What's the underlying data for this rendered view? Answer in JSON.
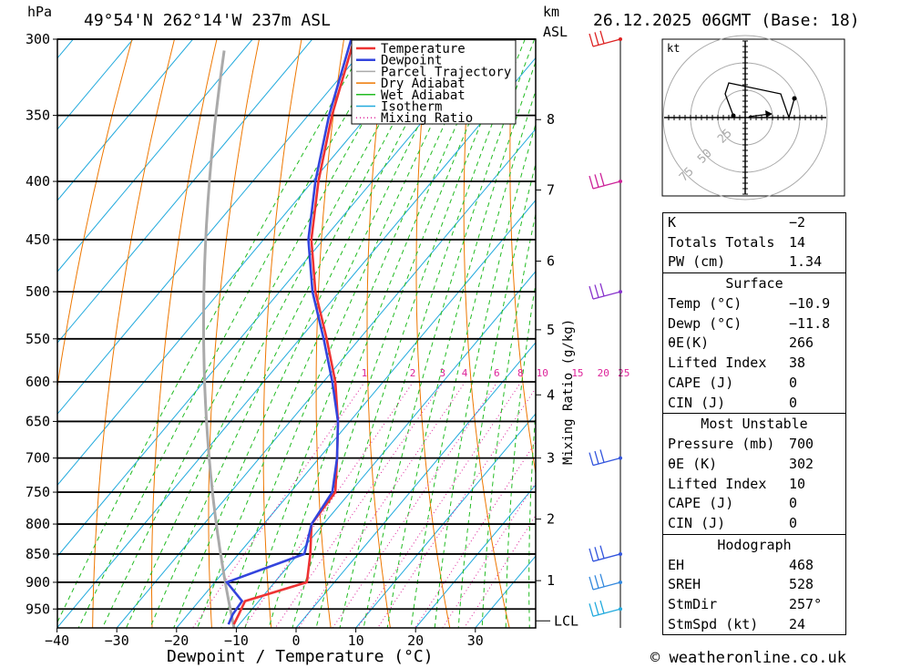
{
  "header": {
    "location": "49°54'N  262°14'W  237m  ASL",
    "datetime": "26.12.2025  06GMT  (Base: 18)",
    "hpa_unit": "hPa",
    "km_unit": "km",
    "asl_unit": "ASL"
  },
  "legend": {
    "items": [
      {
        "label": "Temperature",
        "color": "#ee3333"
      },
      {
        "label": "Dewpoint",
        "color": "#3344dd"
      },
      {
        "label": "Parcel Trajectory",
        "color": "#aaaaaa"
      },
      {
        "label": "Dry Adiabat",
        "color": "#ee7700"
      },
      {
        "label": "Wet Adiabat",
        "color": "#22bb22"
      },
      {
        "label": "Isotherm",
        "color": "#22aadd"
      },
      {
        "label": "Mixing Ratio",
        "color": "#dd2299"
      }
    ]
  },
  "chart_data": {
    "type": "line",
    "title": "Skew-T log-P diagram",
    "xlabel": "Dewpoint / Temperature (°C)",
    "ylabel": "hPa",
    "x_ticks": [
      -40,
      -30,
      -20,
      -10,
      0,
      10,
      20,
      30
    ],
    "x_tick_labels": [
      "−40",
      "−30",
      "−20",
      "−10",
      "0",
      "10",
      "20",
      "30"
    ],
    "pressure_levels": [
      300,
      350,
      400,
      450,
      500,
      550,
      600,
      650,
      700,
      750,
      800,
      850,
      900,
      950
    ],
    "km_ticks": [
      {
        "km": "8",
        "p": 353
      },
      {
        "km": "7",
        "p": 407
      },
      {
        "km": "6",
        "p": 470
      },
      {
        "km": "5",
        "p": 540
      },
      {
        "km": "4",
        "p": 616
      },
      {
        "km": "3",
        "p": 700
      },
      {
        "km": "2",
        "p": 792
      },
      {
        "km": "1",
        "p": 897
      }
    ],
    "lcl": {
      "label": "LCL",
      "p": 973
    },
    "mixing_ratio_label": "Mixing Ratio (g/kg)",
    "mixing_ratio_values": [
      "1",
      "2",
      "3",
      "4",
      "6",
      "8",
      "10",
      "15",
      "20",
      "25"
    ],
    "series": [
      {
        "name": "Temperature",
        "points": [
          {
            "p": 980,
            "t": -10.9
          },
          {
            "p": 960,
            "t": -11.5
          },
          {
            "p": 935,
            "t": -12.3
          },
          {
            "p": 900,
            "t": -4.6
          },
          {
            "p": 850,
            "t": -8.0
          },
          {
            "p": 800,
            "t": -12.0
          },
          {
            "p": 750,
            "t": -12.5
          },
          {
            "p": 700,
            "t": -17.0
          },
          {
            "p": 650,
            "t": -22.0
          },
          {
            "p": 600,
            "t": -28.0
          },
          {
            "p": 550,
            "t": -35.5
          },
          {
            "p": 500,
            "t": -44.0
          },
          {
            "p": 450,
            "t": -52.0
          },
          {
            "p": 400,
            "t": -59.0
          },
          {
            "p": 350,
            "t": -66.0
          },
          {
            "p": 300,
            "t": -73.0
          }
        ]
      },
      {
        "name": "Dewpoint",
        "points": [
          {
            "p": 980,
            "t": -11.8
          },
          {
            "p": 960,
            "t": -12.5
          },
          {
            "p": 935,
            "t": -12.8
          },
          {
            "p": 900,
            "t": -18.0
          },
          {
            "p": 850,
            "t": -9.0
          },
          {
            "p": 800,
            "t": -12.0
          },
          {
            "p": 750,
            "t": -13.0
          },
          {
            "p": 700,
            "t": -17.0
          },
          {
            "p": 650,
            "t": -22.0
          },
          {
            "p": 600,
            "t": -28.5
          },
          {
            "p": 550,
            "t": -36.0
          },
          {
            "p": 500,
            "t": -44.5
          },
          {
            "p": 450,
            "t": -52.5
          },
          {
            "p": 400,
            "t": -59.5
          },
          {
            "p": 350,
            "t": -66.5
          },
          {
            "p": 300,
            "t": -73.5
          }
        ]
      }
    ],
    "wind_barbs": [
      {
        "p": 300,
        "color": "#dd2222"
      },
      {
        "p": 400,
        "color": "#cc2299"
      },
      {
        "p": 500,
        "color": "#8833cc"
      },
      {
        "p": 700,
        "color": "#3355dd"
      },
      {
        "p": 850,
        "color": "#3355dd"
      },
      {
        "p": 900,
        "color": "#3388dd"
      },
      {
        "p": 950,
        "color": "#22aadd"
      }
    ]
  },
  "hodograph": {
    "unit_label": "kt",
    "ring_labels": [
      "25",
      "50",
      "75"
    ]
  },
  "stats": {
    "k_label": "K",
    "k_value": "−2",
    "tt_label": "Totals Totals",
    "tt_value": "14",
    "pw_label": "PW (cm)",
    "pw_value": "1.34",
    "surface_header": "Surface",
    "s_temp_label": "Temp (°C)",
    "s_temp_value": "−10.9",
    "s_dewp_label": "Dewp (°C)",
    "s_dewp_value": "−11.8",
    "s_thetae_label": "θE(K)",
    "s_thetae_value": "266",
    "s_li_label": "Lifted Index",
    "s_li_value": "38",
    "s_cape_label": "CAPE (J)",
    "s_cape_value": "0",
    "s_cin_label": "CIN (J)",
    "s_cin_value": "0",
    "mu_header": "Most Unstable",
    "mu_pressure_label": "Pressure (mb)",
    "mu_pressure_value": "700",
    "mu_thetae_label": "θE (K)",
    "mu_thetae_value": "302",
    "mu_li_label": "Lifted Index",
    "mu_li_value": "10",
    "mu_cape_label": "CAPE (J)",
    "mu_cape_value": "0",
    "mu_cin_label": "CIN (J)",
    "mu_cin_value": "0",
    "hodo_header": "Hodograph",
    "eh_label": "EH",
    "eh_value": "468",
    "sreh_label": "SREH",
    "sreh_value": "528",
    "stmdir_label": "StmDir",
    "stmdir_value": "257°",
    "stmspd_label": "StmSpd (kt)",
    "stmspd_value": "24"
  },
  "footer": {
    "copyright": "© weatheronline.co.uk"
  }
}
